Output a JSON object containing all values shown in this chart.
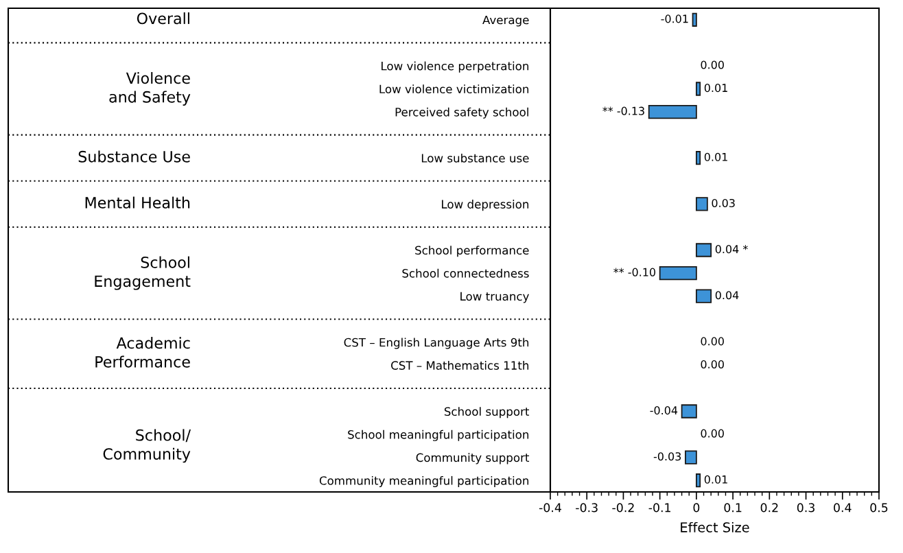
{
  "chart_data": {
    "type": "bar",
    "orientation": "horizontal",
    "xlabel": "Effect Size",
    "categories": [
      "Average",
      null,
      "Low violence perpetration",
      "Low violence victimization",
      "Perceived safety school",
      null,
      "Low substance use",
      null,
      "Low depression",
      null,
      "School performance",
      "School connectedness",
      "Low truancy",
      null,
      "CST – English Language Arts 9th",
      "CST – Mathematics 11th",
      null,
      "School support",
      "School meaningful participation",
      "Community support",
      "Community meaningful participation"
    ],
    "values": [
      -0.01,
      null,
      0.0,
      0.01,
      -0.13,
      null,
      0.01,
      null,
      0.03,
      null,
      0.04,
      -0.1,
      0.04,
      null,
      0.0,
      0.0,
      null,
      -0.04,
      0.0,
      -0.03,
      0.01
    ],
    "value_labels": [
      "-0.01",
      null,
      "0.00",
      "0.01",
      "** -0.13",
      null,
      "0.01",
      null,
      "0.03",
      null,
      "0.04 *",
      "** -0.10",
      "0.04",
      null,
      "0.00",
      "0.00",
      null,
      "-0.04",
      "0.00",
      "-0.03",
      "0.01"
    ],
    "color": "#3d93d8",
    "xlim": [
      -0.4,
      0.5
    ],
    "xticks": [
      -0.4,
      -0.3,
      -0.2,
      -0.1,
      0,
      0.1,
      0.2,
      0.3,
      0.4,
      0.5
    ],
    "grid": false,
    "legend": false,
    "annotations": [
      "Overall",
      "Violence\nand Safety",
      "Substance Use",
      "Mental Health",
      "School\nEngagement",
      "Academic\nPerformance",
      "School/\nCommunity"
    ]
  }
}
